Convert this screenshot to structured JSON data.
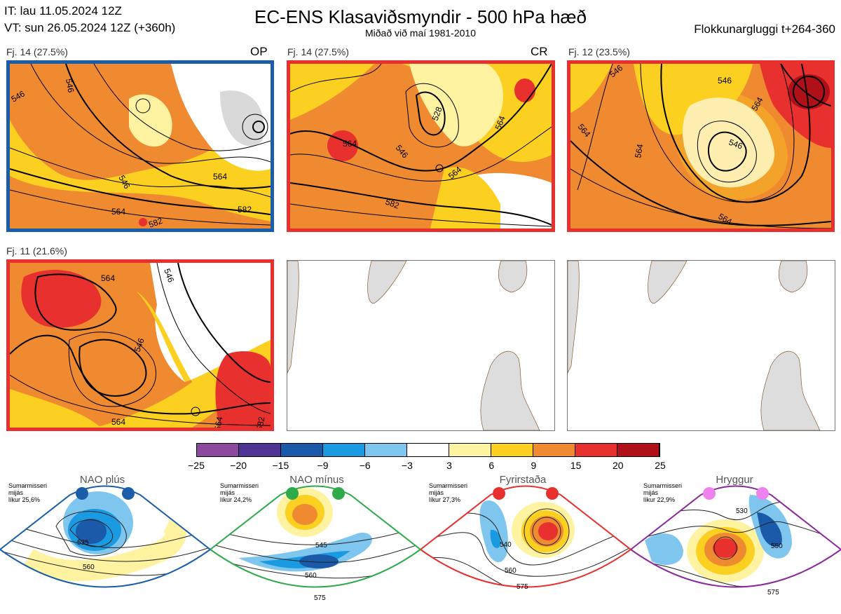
{
  "header": {
    "it_line": "IT: lau 11.05.2024 12Z",
    "vt_line": "VT: sun 26.05.2024 12Z  (+360h)",
    "title": "EC-ENS Klasaviðsmyndir - 500 hPa hæð",
    "subtitle": "Miðað við maí 1981-2010",
    "window": "Flokkunargluggi t+264-360"
  },
  "panels": [
    {
      "label": "Fj. 14 (27.5%)",
      "tag": "OP",
      "border_color": "#1a5da8",
      "contours": [
        "546",
        "546",
        "546",
        "564",
        "564",
        "582",
        "582"
      ]
    },
    {
      "label": "Fj. 14 (27.5%)",
      "tag": "CR",
      "border_color": "#e8302e",
      "contours": [
        "546",
        "528",
        "546",
        "564",
        "564",
        "564",
        "582"
      ]
    },
    {
      "label": "Fj. 12 (23.5%)",
      "tag": "",
      "border_color": "#e8302e",
      "contours": [
        "546",
        "546",
        "546",
        "564",
        "564",
        "564",
        "564"
      ]
    },
    {
      "label": "Fj. 11 (21.6%)",
      "tag": "",
      "border_color": "#e8302e",
      "contours": [
        "564",
        "546",
        "546",
        "564",
        "564",
        "582"
      ]
    }
  ],
  "colorbar": {
    "ticks": [
      "−25",
      "−20",
      "−15",
      "−9",
      "−6",
      "−3",
      "3",
      "6",
      "9",
      "15",
      "20",
      "25"
    ],
    "colors": [
      "#8c4a9e",
      "#503494",
      "#1a5aa8",
      "#1a9ae0",
      "#7fc6ee",
      "#ffffff",
      "#fff2a0",
      "#fbd020",
      "#f08a30",
      "#e8302e",
      "#b01018"
    ]
  },
  "regimes": [
    {
      "title": "NAO plús",
      "note": [
        "Sumarmisseri",
        "mijás",
        "líkur 25,6%"
      ],
      "color": "#1a5da8",
      "dot_color": "#1a5da8",
      "contours": [
        "535",
        "560"
      ]
    },
    {
      "title": "NAO mínus",
      "note": [
        "Sumarmisseri",
        "mijás",
        "líkur 24,2%"
      ],
      "color": "#2eaa4a",
      "dot_color": "#2eaa4a",
      "contours": [
        "545",
        "560",
        "575"
      ]
    },
    {
      "title": "Fyrirstaða",
      "note": [
        "Sumarmisseri",
        "mijás",
        "líkur 27,3%"
      ],
      "color": "#e8302e",
      "dot_color": "#e8302e",
      "contours": [
        "540",
        "560",
        "575"
      ]
    },
    {
      "title": "Hryggur",
      "note": [
        "Sumarmisseri",
        "mijás",
        "líkur 22,9%"
      ],
      "color": "#8a2a9a",
      "dot_color": "#ee82ee",
      "contours": [
        "530",
        "550",
        "575"
      ]
    }
  ]
}
